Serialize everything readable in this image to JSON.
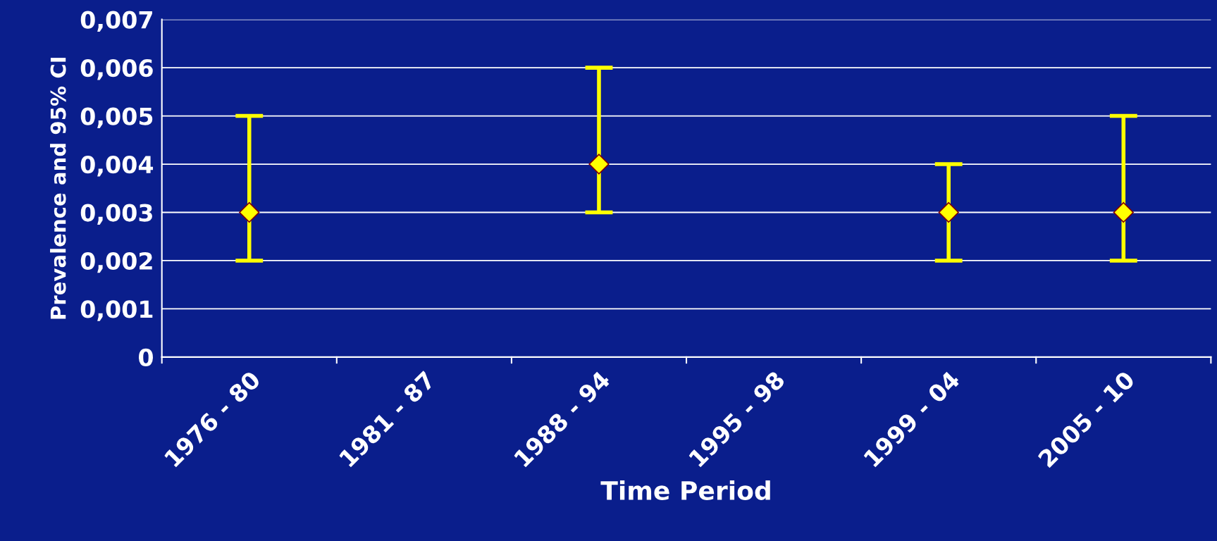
{
  "chart_data": {
    "type": "scatter",
    "xlabel": "Time Period",
    "ylabel": "Prevalence and 95% CI",
    "categories": [
      "1976 - 80",
      "1981 - 87",
      "1988 - 94",
      "1995 - 98",
      "1999 - 04",
      "2005 - 10"
    ],
    "series": [
      {
        "color": "#ffff00",
        "values": [
          0.003,
          null,
          0.004,
          null,
          0.003,
          0.003
        ],
        "errors": [
          [
            0.002,
            0.005
          ],
          null,
          [
            0.003,
            0.006
          ],
          null,
          [
            0.002,
            0.004
          ],
          [
            0.002,
            0.005
          ]
        ]
      }
    ],
    "ylim": [
      0,
      0.007
    ],
    "yticks": [
      {
        "value": 0,
        "label": "0"
      },
      {
        "value": 0.001,
        "label": "0,001"
      },
      {
        "value": 0.002,
        "label": "0,002"
      },
      {
        "value": 0.003,
        "label": "0,003"
      },
      {
        "value": 0.004,
        "label": "0,004"
      },
      {
        "value": 0.005,
        "label": "0,005"
      },
      {
        "value": 0.006,
        "label": "0,006"
      },
      {
        "value": 0.007,
        "label": "0,007"
      }
    ],
    "grid": "y",
    "marker": "diamond"
  }
}
